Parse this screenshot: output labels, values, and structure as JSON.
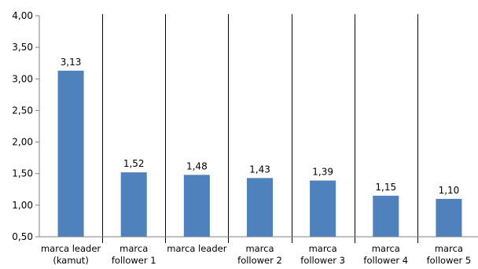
{
  "chart_data": {
    "type": "bar",
    "title": "",
    "xlabel": "",
    "ylabel": "",
    "ylim": [
      0.5,
      4.0
    ],
    "yticks": [
      "0,50",
      "1,00",
      "1,50",
      "2,00",
      "2,50",
      "3,00",
      "3,50",
      "4,00"
    ],
    "grid": false,
    "categories": [
      [
        "marca leader",
        "(kamut)"
      ],
      [
        "marca",
        "follower 1"
      ],
      [
        "marca leader"
      ],
      [
        "marca",
        "follower 2"
      ],
      [
        "marca",
        "follower 3"
      ],
      [
        "marca",
        "follower 4"
      ],
      [
        "marca",
        "follower 5"
      ]
    ],
    "values": [
      3.13,
      1.52,
      1.48,
      1.43,
      1.39,
      1.15,
      1.1
    ],
    "data_labels": [
      "3,13",
      "1,52",
      "1,48",
      "1,43",
      "1,39",
      "1,15",
      "1,10"
    ],
    "bar_color": "#4F81BD"
  }
}
